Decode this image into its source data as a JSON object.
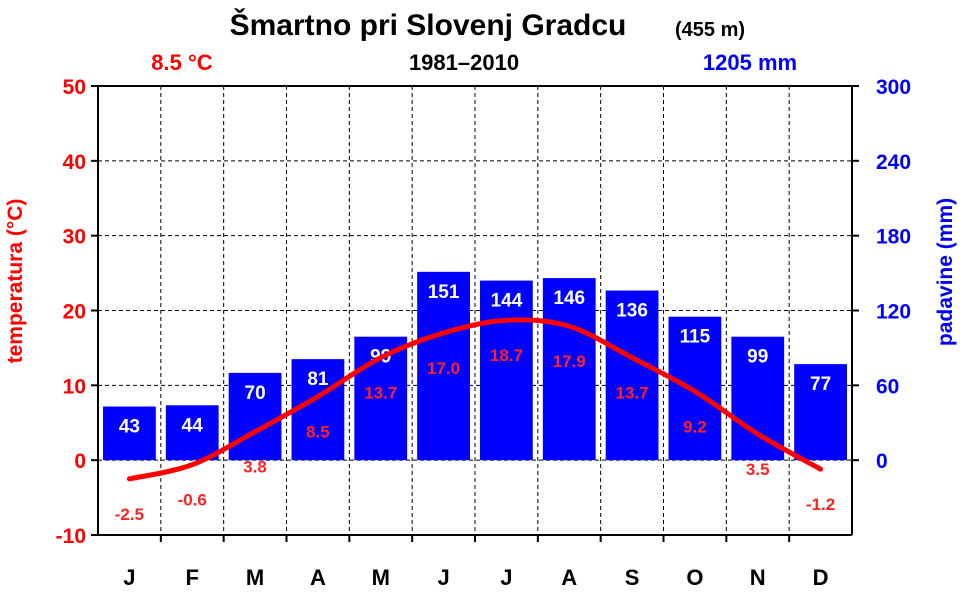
{
  "header": {
    "station": "Šmartno pri Slovenj Gradcu",
    "elevation": "(455 m)",
    "annual_temp": "8.5 °C",
    "period": "1981–2010",
    "annual_precip": "1205 mm"
  },
  "colors": {
    "temp": "#ff0000",
    "temp_label": "#ff2222",
    "precip": "#0000ff",
    "grid": "#000000",
    "background": "#ffffff"
  },
  "chart_data": {
    "type": "bar",
    "title": "Šmartno pri Slovenj Gradcu",
    "categories": [
      "J",
      "F",
      "M",
      "A",
      "M",
      "J",
      "J",
      "A",
      "S",
      "O",
      "N",
      "D"
    ],
    "series": [
      {
        "name": "padavine",
        "type": "bar",
        "axis": "right",
        "values": [
          43,
          44,
          70,
          81,
          99,
          151,
          144,
          146,
          136,
          115,
          99,
          77
        ],
        "value_labels": [
          "43",
          "44",
          "70",
          "81",
          "99",
          "151",
          "144",
          "146",
          "136",
          "115",
          "99",
          "77"
        ]
      },
      {
        "name": "temperatura",
        "type": "line",
        "axis": "left",
        "values": [
          -2.5,
          -0.6,
          3.8,
          8.5,
          13.7,
          17.0,
          18.7,
          17.9,
          13.7,
          9.2,
          3.5,
          -1.2
        ],
        "value_labels": [
          "-2.5",
          "-0.6",
          "3.8",
          "8.5",
          "13.7",
          "17.0",
          "18.7",
          "17.9",
          "13.7",
          "9.2",
          "3.5",
          "-1.2"
        ]
      }
    ],
    "y_left": {
      "label": "temperatura (°C)",
      "range": [
        -10,
        50
      ],
      "ticks": [
        "50",
        "40",
        "30",
        "20",
        "10",
        "0",
        "-10"
      ]
    },
    "y_right": {
      "label": "padavine (mm)",
      "range": [
        -60,
        300
      ],
      "ticks": [
        "300",
        "240",
        "180",
        "120",
        "60",
        "0"
      ]
    },
    "grid": true
  }
}
